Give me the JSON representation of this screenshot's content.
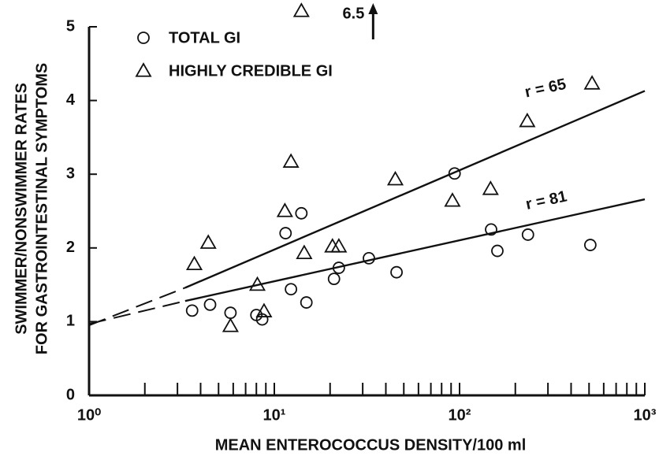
{
  "chart_data": {
    "type": "scatter",
    "xlabel": "MEAN ENTEROCOCCUS DENSITY/100 ml",
    "ylabel": [
      "SWIMMER/NONSWIMMER RATES",
      "FOR GASTROINTESTINAL SYMPTOMS"
    ],
    "xscale": "log",
    "xlim": [
      1,
      1000
    ],
    "ylim": [
      0,
      5
    ],
    "xticks": [
      {
        "value": 1,
        "label": "10⁰"
      },
      {
        "value": 10,
        "label": "10¹"
      },
      {
        "value": 100,
        "label": "10²"
      },
      {
        "value": 1000,
        "label": "10³"
      }
    ],
    "xticks_minor": [
      2,
      3,
      4,
      5,
      6,
      7,
      8,
      9,
      20,
      30,
      40,
      50,
      60,
      70,
      80,
      90,
      200,
      300,
      400,
      500,
      600,
      700,
      800,
      900
    ],
    "yticks": [
      0,
      1,
      2,
      3,
      4,
      5
    ],
    "legend": "top-left",
    "series": [
      {
        "name": "TOTAL GI",
        "marker": "circle",
        "color": "#111111",
        "x": [
          3.6,
          4.5,
          5.8,
          8.0,
          8.6,
          11.5,
          14.0,
          12.3,
          14.9,
          21,
          22.3,
          32.4,
          45.7,
          94,
          148,
          160,
          234,
          508
        ],
        "values": [
          1.15,
          1.23,
          1.12,
          1.09,
          1.03,
          2.2,
          2.47,
          1.44,
          1.26,
          1.58,
          1.73,
          1.86,
          1.67,
          3.01,
          2.25,
          1.96,
          2.18,
          2.04
        ]
      },
      {
        "name": "HIGHLY CREDIBLE GI",
        "marker": "triangle",
        "color": "#111111",
        "x": [
          3.7,
          4.4,
          5.8,
          8.1,
          8.8,
          11.4,
          12.3,
          14.5,
          14.0,
          20.6,
          22.3,
          45,
          91.5,
          147,
          232,
          519
        ],
        "values": [
          1.78,
          2.07,
          0.94,
          1.5,
          1.14,
          2.5,
          3.17,
          1.93,
          6.5,
          2.02,
          2.02,
          2.93,
          2.64,
          2.8,
          3.72,
          4.23
        ],
        "value_labels": [
          null,
          null,
          null,
          null,
          null,
          null,
          null,
          null,
          "6.5",
          null,
          null,
          null,
          null,
          null,
          null,
          null
        ]
      }
    ],
    "fits": [
      {
        "label": "r = 65",
        "dashed": {
          "x": [
            1,
            3.3
          ],
          "values": [
            0.95,
            1.46
          ]
        },
        "solid": {
          "x": [
            3.3,
            1000
          ],
          "values": [
            1.46,
            4.13
          ]
        }
      },
      {
        "label": "r = 81",
        "dashed": {
          "x": [
            1,
            3.3
          ],
          "values": [
            0.97,
            1.28
          ]
        },
        "solid": {
          "x": [
            3.3,
            1000
          ],
          "values": [
            1.28,
            2.66
          ]
        }
      }
    ]
  }
}
